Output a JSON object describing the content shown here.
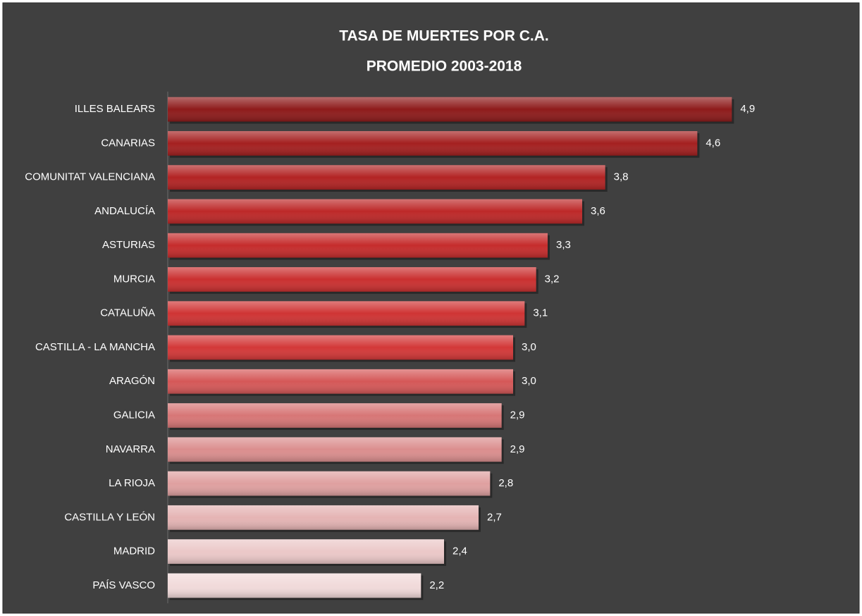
{
  "chart_data": {
    "type": "hbar",
    "title": "TASA DE MUERTES POR C.A.",
    "subtitle": "PROMEDIO 2003-2018",
    "categories": [
      "ILLES BALEARS",
      "CANARIAS",
      "COMUNITAT VALENCIANA",
      "ANDALUCÍA",
      "ASTURIAS",
      "MURCIA",
      "CATALUÑA",
      "CASTILLA - LA MANCHA",
      "ARAGÓN",
      "GALICIA",
      "NAVARRA",
      "LA RIOJA",
      "CASTILLA Y LEÓN",
      "MADRID",
      "PAÍS VASCO"
    ],
    "values": [
      4.9,
      4.6,
      3.8,
      3.6,
      3.3,
      3.2,
      3.1,
      3.0,
      3.0,
      2.9,
      2.9,
      2.8,
      2.7,
      2.4,
      2.2
    ],
    "value_labels": [
      "4,9",
      "4,6",
      "3,8",
      "3,6",
      "3,3",
      "3,2",
      "3,1",
      "3,0",
      "3,0",
      "2,9",
      "2,9",
      "2,8",
      "2,7",
      "2,4",
      "2,2"
    ],
    "colors": [
      "#8e1b1b",
      "#a42020",
      "#b32424",
      "#bd2828",
      "#c52c2c",
      "#ca3030",
      "#cf3434",
      "#d33838",
      "#d55858",
      "#d77676",
      "#db8e8e",
      "#dfa0a0",
      "#e5b4b4",
      "#ebc8c8",
      "#f1dada"
    ],
    "xlim": [
      0,
      6
    ]
  }
}
